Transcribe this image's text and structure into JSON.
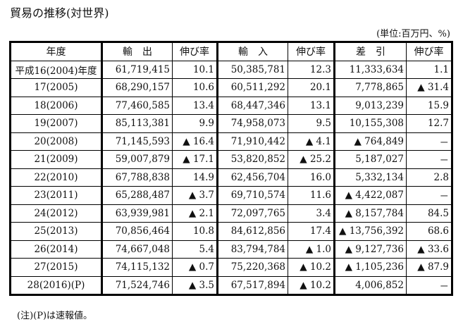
{
  "title": "貿易の推移(対世界)",
  "unit": "(単位:百万円、%)",
  "headers": [
    "年度",
    "輸　出",
    "伸び率",
    "輸　入",
    "伸び率",
    "差　引",
    "伸び率"
  ],
  "rows": [
    [
      "平成16(2004)年度",
      "61,719,415",
      "10.1",
      "50,385,781",
      "12.3",
      "11,333,634",
      "1.1"
    ],
    [
      "17(2005)",
      "68,290,157",
      "10.6",
      "60,511,292",
      "20.1",
      "7,778,865",
      "▲ 31.4"
    ],
    [
      "18(2006)",
      "77,460,585",
      "13.4",
      "68,447,346",
      "13.1",
      "9,013,239",
      "15.9"
    ],
    [
      "19(2007)",
      "85,113,381",
      "9.9",
      "74,958,073",
      "9.5",
      "10,155,308",
      "12.7"
    ],
    [
      "20(2008)",
      "71,145,593",
      "▲ 16.4",
      "71,910,442",
      "▲ 4.1",
      "▲ 764,849",
      "－"
    ],
    [
      "21(2009)",
      "59,007,879",
      "▲ 17.1",
      "53,820,852",
      "▲ 25.2",
      "5,187,027",
      "－"
    ],
    [
      "22(2010)",
      "67,788,838",
      "14.9",
      "62,456,704",
      "16.0",
      "5,332,134",
      "2.8"
    ],
    [
      "23(2011)",
      "65,288,487",
      "▲ 3.7",
      "69,710,574",
      "11.6",
      "▲ 4,422,087",
      "－"
    ],
    [
      "24(2012)",
      "63,939,981",
      "▲ 2.1",
      "72,097,765",
      "3.4",
      "▲ 8,157,784",
      "84.5"
    ],
    [
      "25(2013)",
      "70,856,464",
      "10.8",
      "84,612,856",
      "17.4",
      "▲ 13,756,392",
      "68.6"
    ],
    [
      "26(2014)",
      "74,667,048",
      "5.4",
      "83,794,784",
      "▲ 1.0",
      "▲ 9,127,736",
      "▲ 33.6"
    ],
    [
      "27(2015)",
      "74,115,132",
      "▲ 0.7",
      "75,220,368",
      "▲ 10.2",
      "▲ 1,105,236",
      "▲ 87.9"
    ],
    [
      "28(2016)(P)",
      "71,524,746",
      "▲ 3.5",
      "67,517,894",
      "▲ 10.2",
      "4,006,852",
      "－"
    ]
  ],
  "note": "(注)(P)は速報値。"
}
